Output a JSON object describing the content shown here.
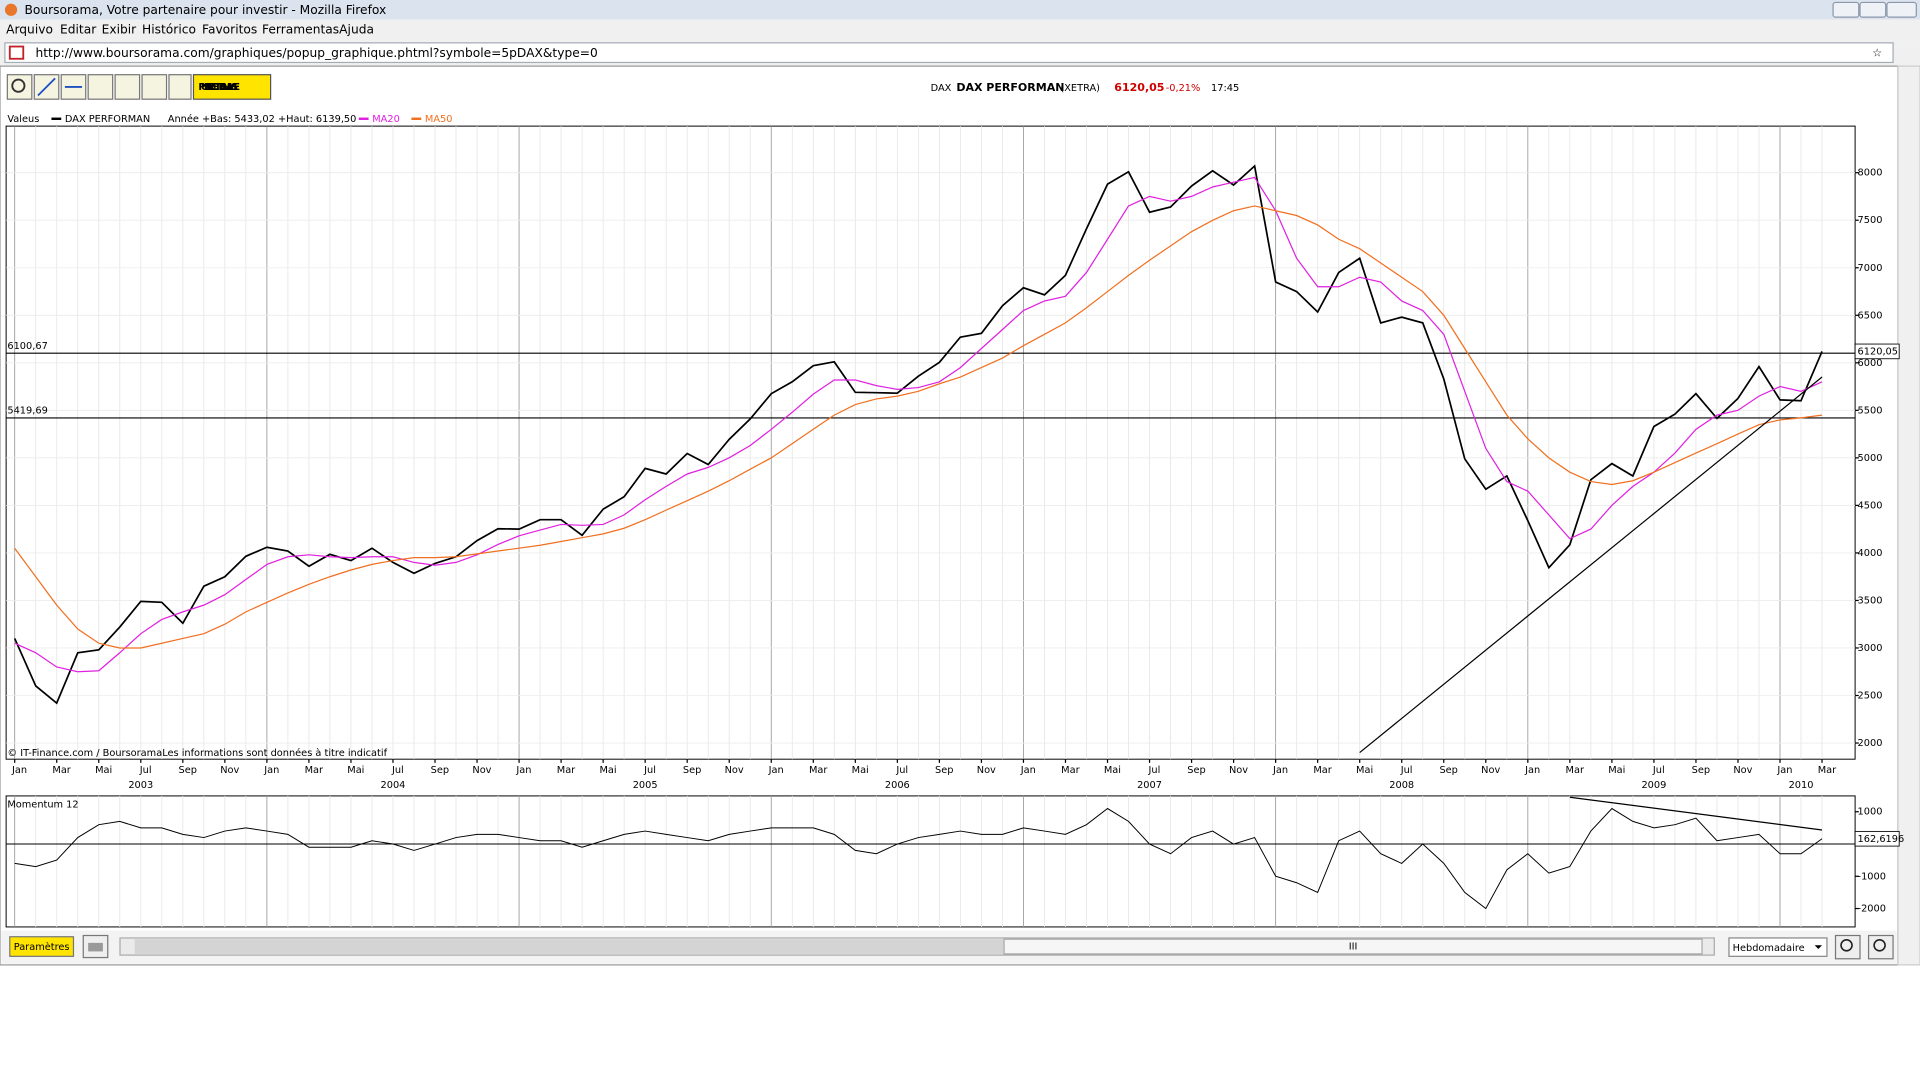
{
  "window": {
    "title": "Boursorama, Votre partenaire pour investir - Mozilla Firefox",
    "menu": [
      "Arquivo",
      "Editar",
      "Exibir",
      "Histórico",
      "Favoritos",
      "Ferramentas",
      "Ajuda"
    ],
    "url": "http://www.boursorama.com/graphiques/popup_graphique.phtml?symbole=5pDAX&type=0"
  },
  "toolbar": {
    "publish": "PUBLIEZ CETTE ANALYSE"
  },
  "quote": {
    "market": "DAX",
    "name": "DAX PERFORMAN",
    "exchange": "(XETRA)",
    "price": "6120,05",
    "change": "-0,21%",
    "time": "17:45"
  },
  "legend": {
    "label": "Valeus",
    "range": "Année +Bas: 5433,02 +Haut: 6139,50"
  },
  "copyright": "© IT-Finance.com / BoursoramaLes informations sont données à titre indicatif",
  "footer": {
    "settings": "Paramètres",
    "period": "Hebdomadaire",
    "scroll": "III"
  },
  "chart_data": {
    "type": "line",
    "x": [
      "2003-01",
      "2003-02",
      "2003-03",
      "2003-04",
      "2003-05",
      "2003-06",
      "2003-07",
      "2003-08",
      "2003-09",
      "2003-10",
      "2003-11",
      "2003-12",
      "2004-01",
      "2004-02",
      "2004-03",
      "2004-04",
      "2004-05",
      "2004-06",
      "2004-07",
      "2004-08",
      "2004-09",
      "2004-10",
      "2004-11",
      "2004-12",
      "2005-01",
      "2005-02",
      "2005-03",
      "2005-04",
      "2005-05",
      "2005-06",
      "2005-07",
      "2005-08",
      "2005-09",
      "2005-10",
      "2005-11",
      "2005-12",
      "2006-01",
      "2006-02",
      "2006-03",
      "2006-04",
      "2006-05",
      "2006-06",
      "2006-07",
      "2006-08",
      "2006-09",
      "2006-10",
      "2006-11",
      "2006-12",
      "2007-01",
      "2007-02",
      "2007-03",
      "2007-04",
      "2007-05",
      "2007-06",
      "2007-07",
      "2007-08",
      "2007-09",
      "2007-10",
      "2007-11",
      "2007-12",
      "2008-01",
      "2008-02",
      "2008-03",
      "2008-04",
      "2008-05",
      "2008-06",
      "2008-07",
      "2008-08",
      "2008-09",
      "2008-10",
      "2008-11",
      "2008-12",
      "2009-01",
      "2009-02",
      "2009-03",
      "2009-04",
      "2009-05",
      "2009-06",
      "2009-07",
      "2009-08",
      "2009-09",
      "2009-10",
      "2009-11",
      "2009-12",
      "2010-01",
      "2010-02",
      "2010-03"
    ],
    "series": [
      {
        "name": "DAX PERFORMAN",
        "color": "#000000",
        "last_label": "6120,05",
        "values": [
          3100,
          2600,
          2420,
          2950,
          2980,
          3220,
          3490,
          3480,
          3260,
          3650,
          3750,
          3965,
          4060,
          4020,
          3860,
          3985,
          3920,
          4050,
          3900,
          3785,
          3890,
          3960,
          4130,
          4255,
          4250,
          4350,
          4350,
          4185,
          4460,
          4590,
          4890,
          4830,
          5045,
          4930,
          5195,
          5410,
          5675,
          5800,
          5970,
          6010,
          5690,
          5685,
          5680,
          5860,
          6005,
          6270,
          6310,
          6600,
          6790,
          6715,
          6920,
          7410,
          7880,
          8010,
          7585,
          7640,
          7860,
          8020,
          7870,
          8070,
          6850,
          6750,
          6535,
          6950,
          7100,
          6420,
          6480,
          6420,
          5830,
          4990,
          4670,
          4810,
          4340,
          3845,
          4085,
          4770,
          4940,
          4810,
          5330,
          5460,
          5675,
          5415,
          5625,
          5960,
          5610,
          5600,
          6120.05
        ]
      },
      {
        "name": "MA20",
        "color": "#e020e0",
        "values": [
          3050,
          2950,
          2800,
          2750,
          2760,
          2950,
          3150,
          3300,
          3380,
          3450,
          3560,
          3720,
          3880,
          3960,
          3980,
          3960,
          3950,
          3960,
          3960,
          3900,
          3870,
          3900,
          3980,
          4090,
          4180,
          4240,
          4300,
          4290,
          4300,
          4400,
          4560,
          4700,
          4830,
          4900,
          5000,
          5130,
          5300,
          5480,
          5670,
          5820,
          5820,
          5760,
          5720,
          5740,
          5800,
          5950,
          6150,
          6350,
          6550,
          6650,
          6700,
          6950,
          7300,
          7650,
          7750,
          7700,
          7750,
          7850,
          7900,
          7950,
          7600,
          7100,
          6800,
          6800,
          6900,
          6850,
          6650,
          6550,
          6300,
          5700,
          5100,
          4750,
          4650,
          4400,
          4150,
          4250,
          4500,
          4700,
          4850,
          5050,
          5300,
          5450,
          5500,
          5650,
          5750,
          5700,
          5800
        ]
      },
      {
        "name": "MA50",
        "color": "#f07020",
        "values": [
          4050,
          3750,
          3450,
          3200,
          3050,
          3000,
          3000,
          3050,
          3100,
          3150,
          3250,
          3380,
          3480,
          3580,
          3670,
          3750,
          3820,
          3880,
          3920,
          3950,
          3950,
          3960,
          3990,
          4020,
          4050,
          4080,
          4120,
          4160,
          4200,
          4260,
          4350,
          4450,
          4550,
          4650,
          4760,
          4880,
          5000,
          5150,
          5300,
          5450,
          5560,
          5620,
          5650,
          5700,
          5780,
          5850,
          5950,
          6050,
          6180,
          6300,
          6420,
          6580,
          6750,
          6920,
          7080,
          7230,
          7380,
          7500,
          7600,
          7650,
          7600,
          7550,
          7450,
          7300,
          7200,
          7050,
          6900,
          6750,
          6500,
          6150,
          5800,
          5450,
          5200,
          5000,
          4850,
          4750,
          4720,
          4760,
          4850,
          4950,
          5050,
          5150,
          5250,
          5350,
          5400,
          5420,
          5450
        ]
      },
      {
        "name": "Momentum 12",
        "color": "#000000",
        "axis": "y2",
        "last_label": "162,6196",
        "values": [
          -600,
          -700,
          -500,
          200,
          600,
          700,
          500,
          500,
          300,
          200,
          400,
          500,
          400,
          300,
          -100,
          -100,
          -100,
          100,
          0,
          -200,
          0,
          200,
          300,
          300,
          200,
          100,
          100,
          -100,
          100,
          300,
          400,
          300,
          200,
          100,
          300,
          400,
          500,
          500,
          500,
          300,
          -200,
          -300,
          0,
          200,
          300,
          400,
          300,
          300,
          500,
          400,
          300,
          600,
          1100,
          700,
          0,
          -300,
          200,
          400,
          0,
          200,
          -1000,
          -1200,
          -1500,
          100,
          400,
          -300,
          -600,
          0,
          -600,
          -1500,
          -2000,
          -800,
          -300,
          -900,
          -700,
          400,
          1100,
          700,
          500,
          600,
          800,
          100,
          200,
          300,
          -300,
          -300,
          162.6196
        ]
      }
    ],
    "ylim": [
      1830,
      8490
    ],
    "yticks": [
      2000,
      2500,
      3000,
      3500,
      4000,
      4500,
      5000,
      5500,
      6000,
      6500,
      7000,
      7500,
      8000
    ],
    "y2lim": [
      -2570,
      1490
    ],
    "y2ticks": [
      1000,
      -1000,
      -2000
    ],
    "xticks": [
      {
        "value": "2003-01",
        "label": "Jan"
      },
      {
        "value": "2003-03",
        "label": "Mar"
      },
      {
        "value": "2003-05",
        "label": "Mai"
      },
      {
        "value": "2003-07",
        "label": "Jul"
      },
      {
        "value": "2003-09",
        "label": "Sep"
      },
      {
        "value": "2003-11",
        "label": "Nov"
      },
      {
        "value": "2004-01",
        "label": "Jan"
      },
      {
        "value": "2004-03",
        "label": "Mar"
      },
      {
        "value": "2004-05",
        "label": "Mai"
      },
      {
        "value": "2004-07",
        "label": "Jul"
      },
      {
        "value": "2004-09",
        "label": "Sep"
      },
      {
        "value": "2004-11",
        "label": "Nov"
      },
      {
        "value": "2005-01",
        "label": "Jan"
      },
      {
        "value": "2005-03",
        "label": "Mar"
      },
      {
        "value": "2005-05",
        "label": "Mai"
      },
      {
        "value": "2005-07",
        "label": "Jul"
      },
      {
        "value": "2005-09",
        "label": "Sep"
      },
      {
        "value": "2005-11",
        "label": "Nov"
      },
      {
        "value": "2006-01",
        "label": "Jan"
      },
      {
        "value": "2006-03",
        "label": "Mar"
      },
      {
        "value": "2006-05",
        "label": "Mai"
      },
      {
        "value": "2006-07",
        "label": "Jul"
      },
      {
        "value": "2006-09",
        "label": "Sep"
      },
      {
        "value": "2006-11",
        "label": "Nov"
      },
      {
        "value": "2007-01",
        "label": "Jan"
      },
      {
        "value": "2007-03",
        "label": "Mar"
      },
      {
        "value": "2007-05",
        "label": "Mai"
      },
      {
        "value": "2007-07",
        "label": "Jul"
      },
      {
        "value": "2007-09",
        "label": "Sep"
      },
      {
        "value": "2007-11",
        "label": "Nov"
      },
      {
        "value": "2008-01",
        "label": "Jan"
      },
      {
        "value": "2008-03",
        "label": "Mar"
      },
      {
        "value": "2008-05",
        "label": "Mai"
      },
      {
        "value": "2008-07",
        "label": "Jul"
      },
      {
        "value": "2008-09",
        "label": "Sep"
      },
      {
        "value": "2008-11",
        "label": "Nov"
      },
      {
        "value": "2009-01",
        "label": "Jan"
      },
      {
        "value": "2009-03",
        "label": "Mar"
      },
      {
        "value": "2009-05",
        "label": "Mai"
      },
      {
        "value": "2009-07",
        "label": "Jul"
      },
      {
        "value": "2009-09",
        "label": "Sep"
      },
      {
        "value": "2009-11",
        "label": "Nov"
      },
      {
        "value": "2010-01",
        "label": "Jan"
      },
      {
        "value": "2010-03",
        "label": "Mar"
      }
    ],
    "years": [
      {
        "value": "2003-07",
        "label": "2003"
      },
      {
        "value": "2004-07",
        "label": "2004"
      },
      {
        "value": "2005-07",
        "label": "2005"
      },
      {
        "value": "2006-07",
        "label": "2006"
      },
      {
        "value": "2007-07",
        "label": "2007"
      },
      {
        "value": "2008-07",
        "label": "2008"
      },
      {
        "value": "2009-07",
        "label": "2009"
      },
      {
        "value": "2010-02",
        "label": "2010"
      }
    ],
    "hlines": [
      {
        "value": 6100.67,
        "label": "6100,67"
      },
      {
        "value": 5419.69,
        "label": "5419,69"
      }
    ],
    "trendlines": [
      {
        "x": [
          "2008-05",
          "2010-03"
        ],
        "values": [
          1900,
          5850
        ]
      },
      {
        "x": [
          "2009-03",
          "2010-03"
        ],
        "values": [
          1450,
          434
        ],
        "axis": "y2"
      }
    ],
    "grid": true
  }
}
